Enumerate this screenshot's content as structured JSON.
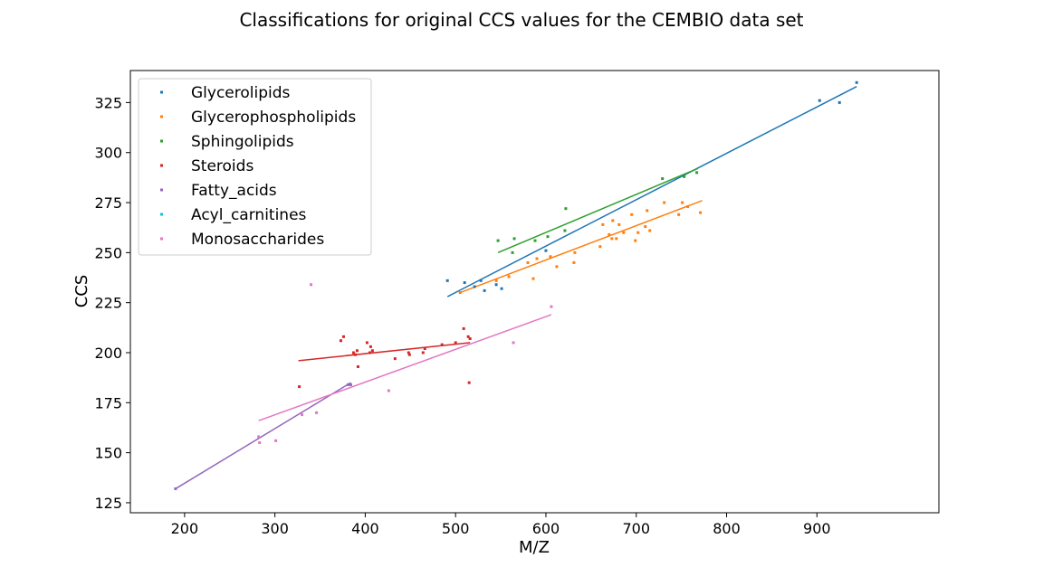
{
  "chart_data": {
    "type": "scatter",
    "title": "Classifications for original CCS values for the CEMBIO data set",
    "xlabel": "M/Z",
    "ylabel": "CCS",
    "xlim": [
      140,
      1035
    ],
    "ylim": [
      120,
      341
    ],
    "xticks": [
      200,
      300,
      400,
      500,
      600,
      700,
      800,
      900
    ],
    "yticks": [
      125,
      150,
      175,
      200,
      225,
      250,
      275,
      300,
      325
    ],
    "grid": false,
    "legend_position": "top-left",
    "series": [
      {
        "name": "Glycerolipids",
        "color": "#1f77b4",
        "points": [
          [
            491,
            236
          ],
          [
            510,
            235
          ],
          [
            521,
            233
          ],
          [
            528,
            236
          ],
          [
            532,
            231
          ],
          [
            545,
            234
          ],
          [
            551,
            232
          ],
          [
            600,
            251
          ],
          [
            903,
            326
          ],
          [
            925,
            325
          ],
          [
            944,
            335
          ]
        ],
        "fit": [
          [
            491,
            228
          ],
          [
            944,
            333
          ]
        ]
      },
      {
        "name": "Glycerophospholipids",
        "color": "#ff7f0e",
        "points": [
          [
            505,
            230
          ],
          [
            545,
            236
          ],
          [
            559,
            238
          ],
          [
            580,
            245
          ],
          [
            586,
            237
          ],
          [
            590,
            247
          ],
          [
            605,
            248
          ],
          [
            612,
            243
          ],
          [
            631,
            245
          ],
          [
            632,
            250
          ],
          [
            660,
            253
          ],
          [
            663,
            264
          ],
          [
            670,
            259
          ],
          [
            673,
            257
          ],
          [
            674,
            266
          ],
          [
            678,
            257
          ],
          [
            681,
            264
          ],
          [
            686,
            260
          ],
          [
            695,
            269
          ],
          [
            699,
            256
          ],
          [
            702,
            260
          ],
          [
            710,
            263
          ],
          [
            712,
            271
          ],
          [
            715,
            261
          ],
          [
            731,
            275
          ],
          [
            747,
            269
          ],
          [
            751,
            275
          ],
          [
            757,
            273
          ],
          [
            771,
            270
          ]
        ],
        "fit": [
          [
            505,
            230
          ],
          [
            773,
            276
          ]
        ]
      },
      {
        "name": "Sphingolipids",
        "color": "#2ca02c",
        "points": [
          [
            547,
            256
          ],
          [
            563,
            250
          ],
          [
            565,
            257
          ],
          [
            588,
            256
          ],
          [
            602,
            258
          ],
          [
            621,
            261
          ],
          [
            622,
            272
          ],
          [
            729,
            287
          ],
          [
            753,
            288
          ],
          [
            767,
            290
          ]
        ],
        "fit": [
          [
            547,
            250
          ],
          [
            768,
            292
          ]
        ]
      },
      {
        "name": "Steroids",
        "color": "#d62728",
        "points": [
          [
            327,
            183
          ],
          [
            373,
            206
          ],
          [
            376,
            208
          ],
          [
            387,
            200
          ],
          [
            389,
            199
          ],
          [
            391,
            201
          ],
          [
            392,
            193
          ],
          [
            402,
            205
          ],
          [
            405,
            200
          ],
          [
            406,
            203
          ],
          [
            408,
            201
          ],
          [
            433,
            197
          ],
          [
            448,
            200
          ],
          [
            449,
            199
          ],
          [
            464,
            200
          ],
          [
            466,
            202
          ],
          [
            485,
            204
          ],
          [
            500,
            205
          ],
          [
            509,
            212
          ],
          [
            514,
            208
          ],
          [
            515,
            185
          ],
          [
            516,
            207
          ]
        ],
        "fit": [
          [
            326,
            196
          ],
          [
            516,
            205
          ]
        ]
      },
      {
        "name": "Fatty_acids",
        "color": "#9467bd",
        "points": [
          [
            190,
            132
          ],
          [
            381,
            184
          ],
          [
            384,
            184
          ]
        ],
        "fit": [
          [
            190,
            132
          ],
          [
            384,
            185
          ]
        ]
      },
      {
        "name": "Acyl_carnitines",
        "color": "#17becf",
        "points": [],
        "fit": []
      },
      {
        "name": "Monosaccharides",
        "color": "#e377c2",
        "points": [
          [
            282,
            158
          ],
          [
            283,
            155
          ],
          [
            301,
            156
          ],
          [
            330,
            169
          ],
          [
            340,
            234
          ],
          [
            346,
            170
          ],
          [
            426,
            181
          ],
          [
            564,
            205
          ],
          [
            606,
            223
          ]
        ],
        "fit": [
          [
            282,
            166
          ],
          [
            606,
            219
          ]
        ]
      }
    ]
  }
}
